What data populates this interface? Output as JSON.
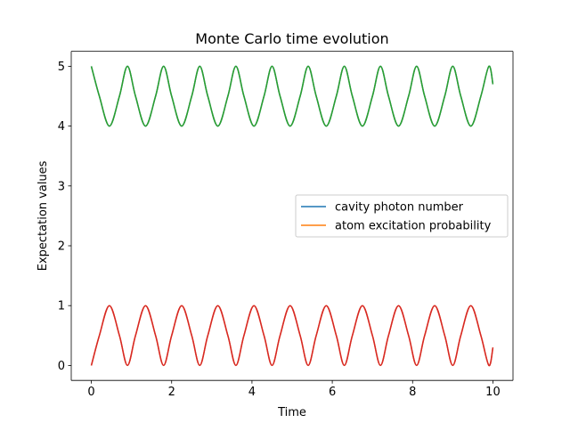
{
  "chart_data": {
    "type": "line",
    "title": "Monte Carlo time evolution",
    "xlabel": "Time",
    "ylabel": "Expectation values",
    "xlim": [
      -0.5,
      10.5
    ],
    "ylim": [
      -0.25,
      5.25
    ],
    "xticks": [
      0,
      2,
      4,
      6,
      8,
      10
    ],
    "yticks": [
      0,
      1,
      2,
      3,
      4,
      5
    ],
    "grid": false,
    "legend_position": "center-right",
    "series": [
      {
        "name": "cavity photon number",
        "color": "#1f77b4",
        "legend": true,
        "x": [
          0,
          0.2,
          0.45,
          0.7,
          0.9,
          1.1,
          1.35,
          1.6,
          1.8,
          2.0,
          2.25,
          2.5,
          2.7,
          2.9,
          3.15,
          3.4,
          3.6,
          3.8,
          4.05,
          4.3,
          4.5,
          4.7,
          4.95,
          5.2,
          5.4,
          5.6,
          5.85,
          6.1,
          6.3,
          6.5,
          6.75,
          7.0,
          7.2,
          7.4,
          7.65,
          7.9,
          8.1,
          8.3,
          8.55,
          8.8,
          9.0,
          9.2,
          9.45,
          9.7,
          9.9,
          10.0
        ],
        "y": [
          5.0,
          4.5,
          4.0,
          4.5,
          5.0,
          4.5,
          4.0,
          4.5,
          5.0,
          4.5,
          4.0,
          4.5,
          5.0,
          4.5,
          4.0,
          4.5,
          5.0,
          4.5,
          4.0,
          4.5,
          5.0,
          4.5,
          4.0,
          4.5,
          5.0,
          4.5,
          4.0,
          4.5,
          5.0,
          4.5,
          4.0,
          4.5,
          5.0,
          4.5,
          4.0,
          4.5,
          5.0,
          4.5,
          4.0,
          4.5,
          5.0,
          4.5,
          4.0,
          4.5,
          5.0,
          4.7
        ]
      },
      {
        "name": "atom excitation probability",
        "color": "#ff7f0e",
        "legend": true,
        "x": [
          0,
          0.2,
          0.45,
          0.7,
          0.9,
          1.1,
          1.35,
          1.6,
          1.8,
          2.0,
          2.25,
          2.5,
          2.7,
          2.9,
          3.15,
          3.4,
          3.6,
          3.8,
          4.05,
          4.3,
          4.5,
          4.7,
          4.95,
          5.2,
          5.4,
          5.6,
          5.85,
          6.1,
          6.3,
          6.5,
          6.75,
          7.0,
          7.2,
          7.4,
          7.65,
          7.9,
          8.1,
          8.3,
          8.55,
          8.8,
          9.0,
          9.2,
          9.45,
          9.7,
          9.9,
          10.0
        ],
        "y": [
          0.0,
          0.5,
          1.0,
          0.5,
          0.0,
          0.5,
          1.0,
          0.5,
          0.0,
          0.5,
          1.0,
          0.5,
          0.0,
          0.5,
          1.0,
          0.5,
          0.0,
          0.5,
          1.0,
          0.5,
          0.0,
          0.5,
          1.0,
          0.5,
          0.0,
          0.5,
          1.0,
          0.5,
          0.0,
          0.5,
          1.0,
          0.5,
          0.0,
          0.5,
          1.0,
          0.5,
          0.0,
          0.5,
          1.0,
          0.5,
          0.0,
          0.5,
          1.0,
          0.5,
          0.0,
          0.3
        ]
      },
      {
        "name": "",
        "color": "#2ca02c",
        "legend": false,
        "x": [
          0,
          0.2,
          0.45,
          0.7,
          0.9,
          1.1,
          1.35,
          1.6,
          1.8,
          2.0,
          2.25,
          2.5,
          2.7,
          2.9,
          3.15,
          3.4,
          3.6,
          3.8,
          4.05,
          4.3,
          4.5,
          4.7,
          4.95,
          5.2,
          5.4,
          5.6,
          5.85,
          6.1,
          6.3,
          6.5,
          6.75,
          7.0,
          7.2,
          7.4,
          7.65,
          7.9,
          8.1,
          8.3,
          8.55,
          8.8,
          9.0,
          9.2,
          9.45,
          9.7,
          9.9,
          10.0
        ],
        "y": [
          5.0,
          4.5,
          4.0,
          4.5,
          5.0,
          4.5,
          4.0,
          4.5,
          5.0,
          4.5,
          4.0,
          4.5,
          5.0,
          4.5,
          4.0,
          4.5,
          5.0,
          4.5,
          4.0,
          4.5,
          5.0,
          4.5,
          4.0,
          4.5,
          5.0,
          4.5,
          4.0,
          4.5,
          5.0,
          4.5,
          4.0,
          4.5,
          5.0,
          4.5,
          4.0,
          4.5,
          5.0,
          4.5,
          4.0,
          4.5,
          5.0,
          4.5,
          4.0,
          4.5,
          5.0,
          4.7
        ]
      },
      {
        "name": "",
        "color": "#d62728",
        "legend": false,
        "x": [
          0,
          0.2,
          0.45,
          0.7,
          0.9,
          1.1,
          1.35,
          1.6,
          1.8,
          2.0,
          2.25,
          2.5,
          2.7,
          2.9,
          3.15,
          3.4,
          3.6,
          3.8,
          4.05,
          4.3,
          4.5,
          4.7,
          4.95,
          5.2,
          5.4,
          5.6,
          5.85,
          6.1,
          6.3,
          6.5,
          6.75,
          7.0,
          7.2,
          7.4,
          7.65,
          7.9,
          8.1,
          8.3,
          8.55,
          8.8,
          9.0,
          9.2,
          9.45,
          9.7,
          9.9,
          10.0
        ],
        "y": [
          0.0,
          0.5,
          1.0,
          0.5,
          0.0,
          0.5,
          1.0,
          0.5,
          0.0,
          0.5,
          1.0,
          0.5,
          0.0,
          0.5,
          1.0,
          0.5,
          0.0,
          0.5,
          1.0,
          0.5,
          0.0,
          0.5,
          1.0,
          0.5,
          0.0,
          0.5,
          1.0,
          0.5,
          0.0,
          0.5,
          1.0,
          0.5,
          0.0,
          0.5,
          1.0,
          0.5,
          0.0,
          0.5,
          1.0,
          0.5,
          0.0,
          0.5,
          1.0,
          0.5,
          0.0,
          0.3
        ]
      }
    ]
  }
}
